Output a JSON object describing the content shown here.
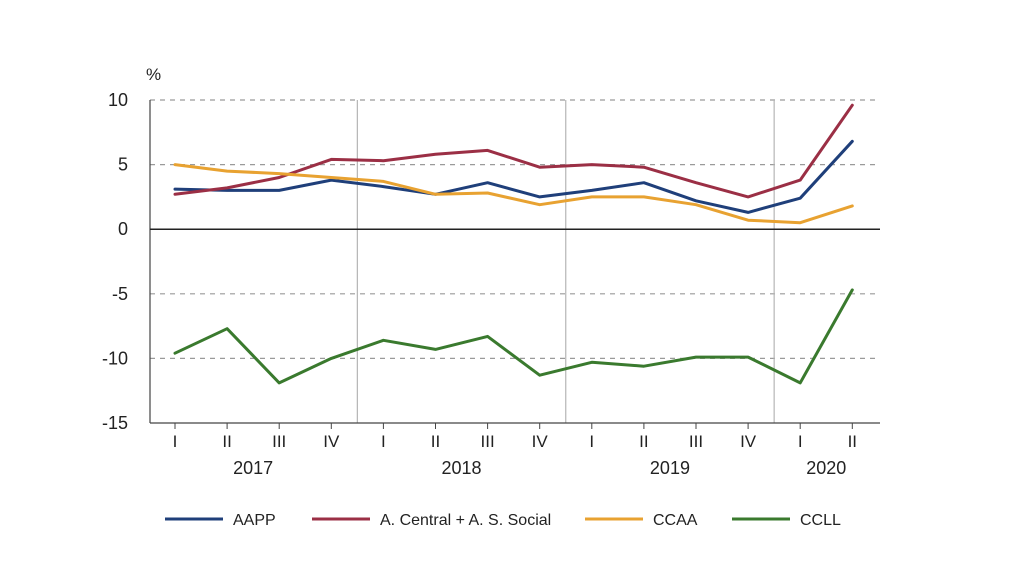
{
  "chart_data": {
    "type": "line",
    "ylabel": "%",
    "ylim": [
      -15,
      10
    ],
    "yticks": [
      10,
      5,
      0,
      -5,
      -10,
      -15
    ],
    "grid": "horizontal-dashed",
    "categories": [
      "I",
      "II",
      "III",
      "IV",
      "I",
      "II",
      "III",
      "IV",
      "I",
      "II",
      "III",
      "IV",
      "I",
      "II"
    ],
    "years": [
      {
        "label": "2017",
        "start": 0,
        "end": 3
      },
      {
        "label": "2018",
        "start": 4,
        "end": 7
      },
      {
        "label": "2019",
        "start": 8,
        "end": 11
      },
      {
        "label": "2020",
        "start": 12,
        "end": 13
      }
    ],
    "series": [
      {
        "name": "AAPP",
        "color": "#1f3f7a",
        "values": [
          3.1,
          3.0,
          3.0,
          3.8,
          3.3,
          2.7,
          3.6,
          2.5,
          3.0,
          3.6,
          2.2,
          1.3,
          2.4,
          6.8
        ]
      },
      {
        "name": "A. Central + A. S. Social",
        "color": "#9b2f45",
        "values": [
          2.7,
          3.2,
          4.0,
          5.4,
          5.3,
          5.8,
          6.1,
          4.8,
          5.0,
          4.8,
          3.6,
          2.5,
          3.8,
          9.6
        ]
      },
      {
        "name": "CCAA",
        "color": "#e8a231",
        "values": [
          5.0,
          4.5,
          4.3,
          4.0,
          3.7,
          2.7,
          2.8,
          1.9,
          2.5,
          2.5,
          1.9,
          0.7,
          0.5,
          1.8
        ]
      },
      {
        "name": "CCLL",
        "color": "#3a7a2e",
        "values": [
          -9.6,
          -7.7,
          -11.9,
          -10.0,
          -8.6,
          -9.3,
          -8.3,
          -11.3,
          -10.3,
          -10.6,
          -9.9,
          -9.9,
          -11.9,
          -4.7
        ]
      }
    ],
    "legend_position": "bottom"
  }
}
